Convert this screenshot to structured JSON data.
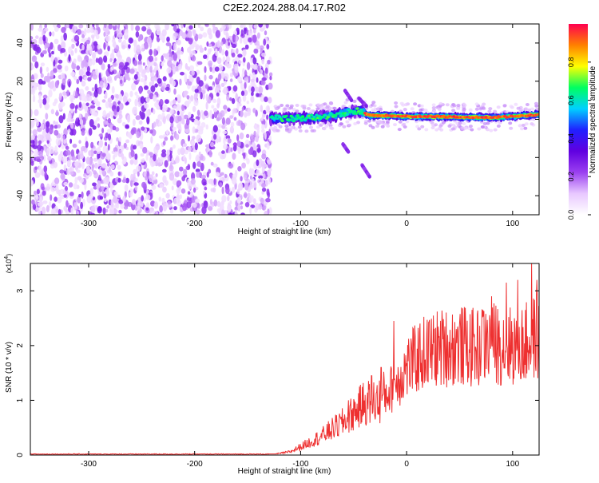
{
  "title": "C2E2.2024.288.04.17.R02",
  "chart_data": [
    {
      "type": "heatmap",
      "xlabel": "Height of straight line (km)",
      "ylabel": "Frequency (Hz)",
      "xlim": [
        -355,
        125
      ],
      "ylim": [
        -50,
        50
      ],
      "xticks": [
        -300,
        -200,
        -100,
        0,
        100
      ],
      "yticks": [
        -40,
        -20,
        0,
        20,
        40
      ],
      "colorbar": {
        "label": "Normalized spectral amplitude",
        "range": [
          0,
          1
        ],
        "ticks": [
          "0.0",
          "0.2",
          "0.4",
          "0.6",
          "0.8"
        ],
        "tick_values": [
          0,
          0.2,
          0.4,
          0.6,
          0.8
        ],
        "colors": [
          "#ffffff",
          "#e8c8ff",
          "#9a40f0",
          "#6000e0",
          "#2020ff",
          "#00d0ff",
          "#00ff60",
          "#ffff00",
          "#ff8000",
          "#ff0050"
        ]
      },
      "features": {
        "noise_region_x": [
          -355,
          -128
        ],
        "signal_track": [
          {
            "x": -128,
            "y": 0.5
          },
          {
            "x": -110,
            "y": 0.5
          },
          {
            "x": -90,
            "y": 0.8
          },
          {
            "x": -70,
            "y": 2.0
          },
          {
            "x": -55,
            "y": 3.5
          },
          {
            "x": -45,
            "y": 4.5
          },
          {
            "x": -35,
            "y": 2.0
          },
          {
            "x": -20,
            "y": 2.0
          },
          {
            "x": 0,
            "y": 1.5
          },
          {
            "x": 20,
            "y": 1.5
          },
          {
            "x": 40,
            "y": 1.3
          },
          {
            "x": 60,
            "y": 1.2
          },
          {
            "x": 80,
            "y": 1.0
          },
          {
            "x": 100,
            "y": 1.5
          },
          {
            "x": 125,
            "y": 2.5
          }
        ],
        "branches": [
          {
            "x": [
              -58,
              -52
            ],
            "y": [
              15,
              10
            ]
          },
          {
            "x": [
              -45,
              -38
            ],
            "y": [
              11,
              7
            ]
          },
          {
            "x": [
              -60,
              -55
            ],
            "y": [
              -13,
              -17
            ]
          },
          {
            "x": [
              -42,
              -35
            ],
            "y": [
              -24,
              -30
            ]
          }
        ]
      }
    },
    {
      "type": "line",
      "xlabel": "Height of straight line (km)",
      "ylabel": "SNR (10 * v/v)",
      "scale_label": "(x10",
      "scale_exponent": "4",
      "scale_suffix": ")",
      "xlim": [
        -355,
        125
      ],
      "ylim": [
        0,
        3.5
      ],
      "xticks": [
        -300,
        -200,
        -100,
        0,
        100
      ],
      "yticks": [
        0,
        1,
        2,
        3
      ],
      "series": [
        {
          "color": "#ee3030",
          "envelope": [
            {
              "x": -355,
              "y": 0.0
            },
            {
              "x": -130,
              "y": 0.0
            },
            {
              "x": -110,
              "y": 0.06
            },
            {
              "x": -95,
              "y": 0.2
            },
            {
              "x": -80,
              "y": 0.35
            },
            {
              "x": -60,
              "y": 0.6
            },
            {
              "x": -40,
              "y": 0.95
            },
            {
              "x": -25,
              "y": 1.0
            },
            {
              "x": -10,
              "y": 1.3
            },
            {
              "x": 0,
              "y": 1.6
            },
            {
              "x": 15,
              "y": 1.85
            },
            {
              "x": 30,
              "y": 1.95
            },
            {
              "x": 50,
              "y": 2.0
            },
            {
              "x": 65,
              "y": 1.95
            },
            {
              "x": 80,
              "y": 2.05
            },
            {
              "x": 95,
              "y": 2.0
            },
            {
              "x": 110,
              "y": 2.0
            },
            {
              "x": 125,
              "y": 2.2
            }
          ],
          "peaks": [
            {
              "x": -55,
              "y": 1.0
            },
            {
              "x": -33,
              "y": 1.45
            },
            {
              "x": -24,
              "y": 1.6
            },
            {
              "x": -12,
              "y": 2.45
            },
            {
              "x": 36,
              "y": 2.35
            },
            {
              "x": 72,
              "y": 2.65
            },
            {
              "x": 80,
              "y": 2.9
            },
            {
              "x": 94,
              "y": 3.15
            },
            {
              "x": 105,
              "y": 3.2
            },
            {
              "x": 118,
              "y": 3.5
            },
            {
              "x": 123,
              "y": 3.2
            }
          ]
        }
      ]
    }
  ]
}
